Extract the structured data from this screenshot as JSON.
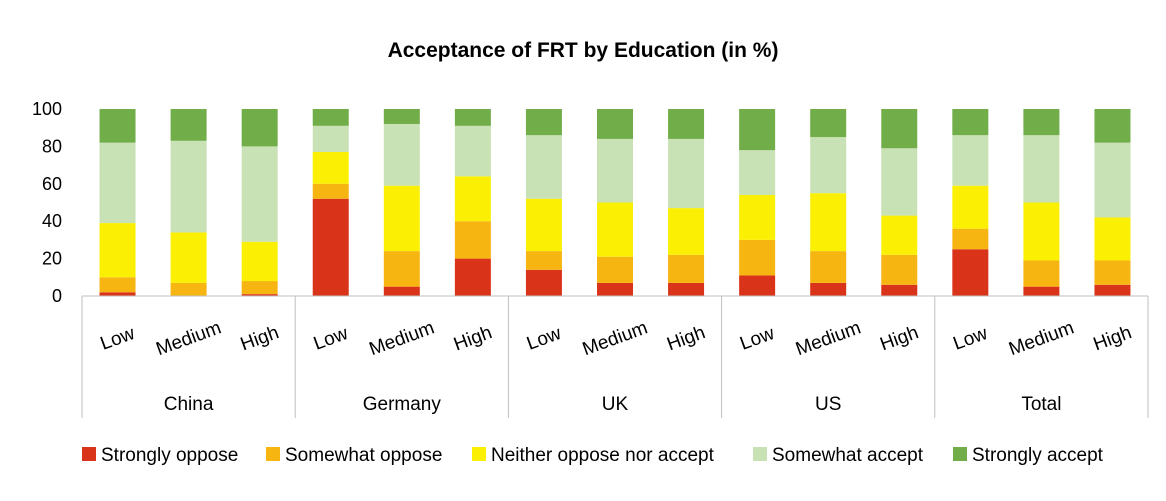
{
  "chart_data": {
    "type": "bar",
    "stacked": true,
    "title": "Acceptance of FRT by Education (in %)",
    "xlabel": "",
    "ylabel": "",
    "ylim": [
      0,
      100
    ],
    "yticks": [
      "0",
      "20",
      "40",
      "60",
      "80",
      "100"
    ],
    "grid": false,
    "legend_position": "bottom",
    "groups": [
      {
        "name": "China",
        "categories": [
          "Low",
          "Medium",
          "High"
        ],
        "series_values": [
          [
            2,
            0,
            1
          ],
          [
            8,
            7,
            7
          ],
          [
            29,
            27,
            21
          ],
          [
            43,
            49,
            51
          ],
          [
            18,
            17,
            20
          ]
        ]
      },
      {
        "name": "Germany",
        "categories": [
          "Low",
          "Medium",
          "High"
        ],
        "series_values": [
          [
            52,
            5,
            20
          ],
          [
            8,
            19,
            20
          ],
          [
            17,
            35,
            24
          ],
          [
            14,
            33,
            27
          ],
          [
            9,
            8,
            9
          ]
        ]
      },
      {
        "name": "UK",
        "categories": [
          "Low",
          "Medium",
          "High"
        ],
        "series_values": [
          [
            14,
            7,
            7
          ],
          [
            10,
            14,
            15
          ],
          [
            28,
            29,
            25
          ],
          [
            34,
            34,
            37
          ],
          [
            14,
            16,
            16
          ]
        ]
      },
      {
        "name": "US",
        "categories": [
          "Low",
          "Medium",
          "High"
        ],
        "series_values": [
          [
            11,
            7,
            6
          ],
          [
            19,
            17,
            16
          ],
          [
            24,
            31,
            21
          ],
          [
            24,
            30,
            36
          ],
          [
            22,
            15,
            21
          ]
        ]
      },
      {
        "name": "Total",
        "categories": [
          "Low",
          "Medium",
          "High"
        ],
        "series_values": [
          [
            25,
            5,
            6
          ],
          [
            11,
            14,
            13
          ],
          [
            23,
            31,
            23
          ],
          [
            27,
            36,
            40
          ],
          [
            14,
            14,
            18
          ]
        ]
      }
    ],
    "series": [
      {
        "name": "Strongly oppose",
        "color": "#d9331a"
      },
      {
        "name": "Somewhat oppose",
        "color": "#f7b512"
      },
      {
        "name": "Neither oppose nor accept",
        "color": "#fbf003"
      },
      {
        "name": "Somewhat accept",
        "color": "#c8e1b5"
      },
      {
        "name": "Strongly accept",
        "color": "#71ad48"
      }
    ]
  }
}
